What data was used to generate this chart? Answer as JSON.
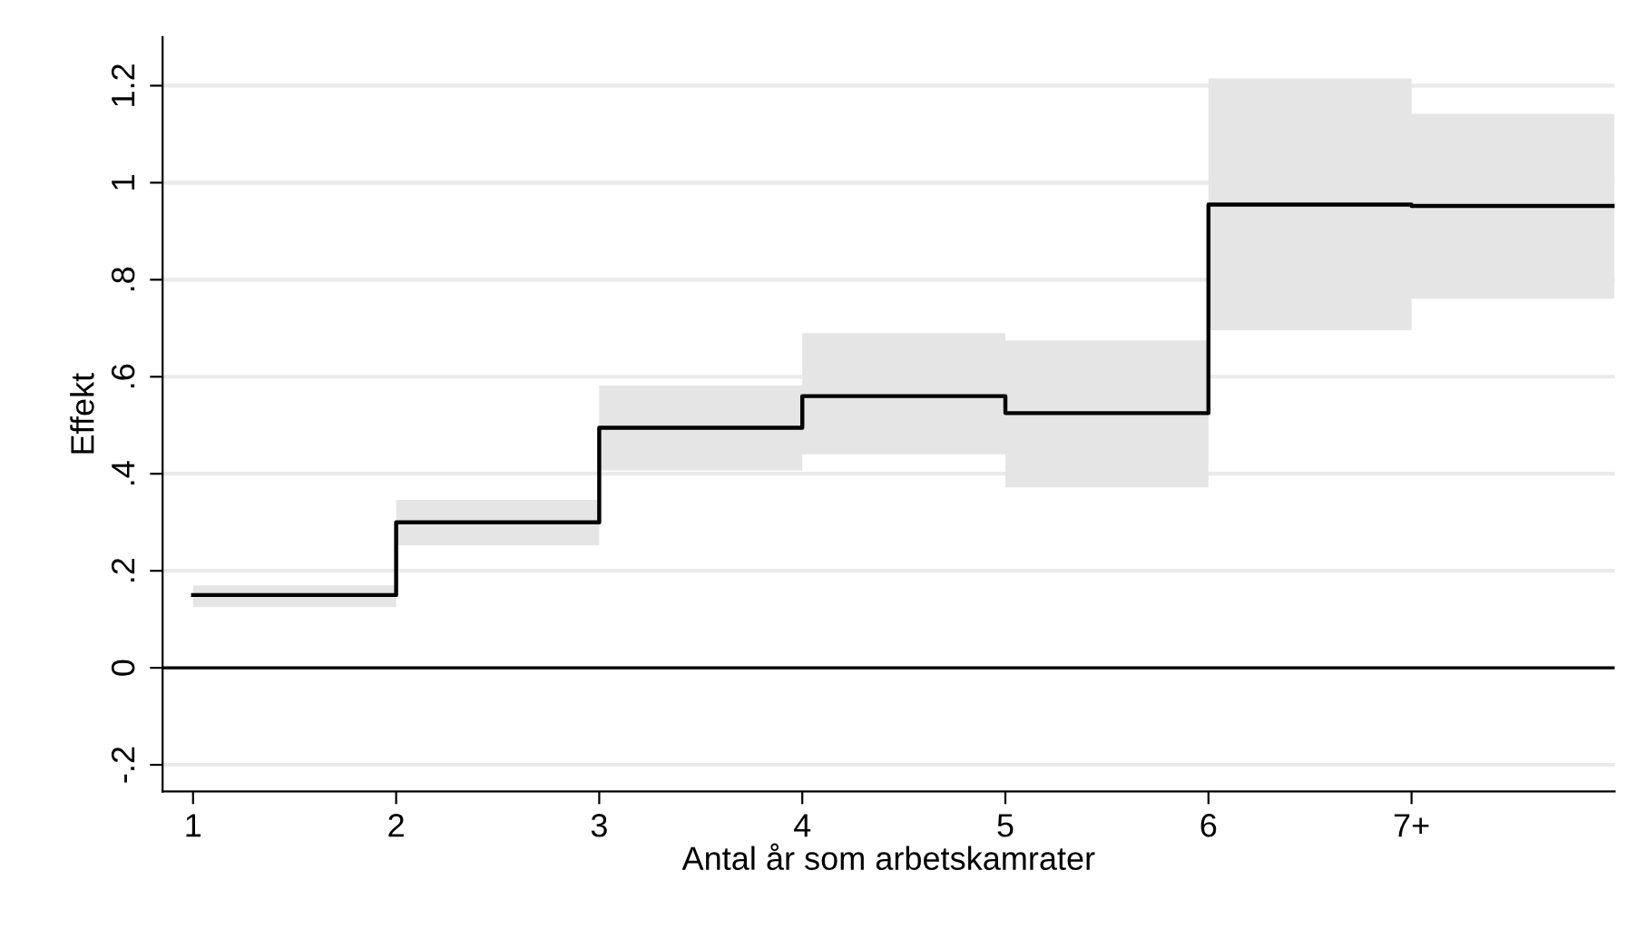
{
  "chart_data": {
    "type": "step",
    "xlabel": "Antal år som arbetskamrater",
    "ylabel": "Effekt",
    "x": [
      1,
      2,
      3,
      4,
      5,
      6,
      7,
      8
    ],
    "series": [
      {
        "color": "#000000",
        "values": [
          0.15,
          0.3,
          0.495,
          0.56,
          0.525,
          0.955,
          0.952,
          0.952
        ],
        "lower": [
          0.125,
          0.252,
          0.407,
          0.44,
          0.372,
          0.696,
          0.761,
          0.761
        ],
        "upper": [
          0.17,
          0.346,
          0.582,
          0.69,
          0.675,
          1.215,
          1.142,
          1.142
        ]
      }
    ],
    "xlim": [
      0.85,
      8.0
    ],
    "xticks": [
      1,
      2,
      3,
      4,
      5,
      6,
      {
        "value": 7,
        "label": "7+"
      }
    ],
    "ylim": [
      -0.255,
      1.3
    ],
    "yticks": [
      {
        "value": -0.2,
        "label": "-.2"
      },
      0,
      {
        "value": 0.2,
        "label": ".2"
      },
      {
        "value": 0.4,
        "label": ".4"
      },
      {
        "value": 0.6,
        "label": ".6"
      },
      {
        "value": 0.8,
        "label": ".8"
      },
      1,
      1.2
    ],
    "ref_lines": [
      {
        "axis": "y",
        "value": 0,
        "color": "#000000"
      }
    ],
    "grid": "y"
  }
}
